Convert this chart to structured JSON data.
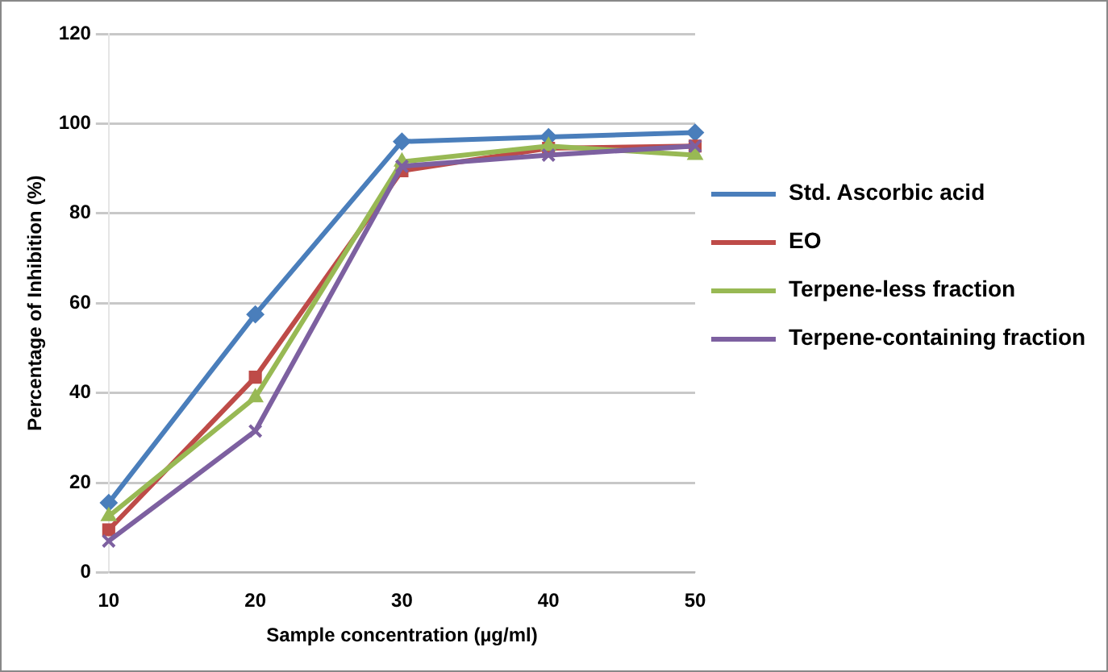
{
  "chart_data": {
    "type": "line",
    "xlabel": "Sample concentration (µg/ml)",
    "ylabel": "Percentage of Inhibition (%)",
    "categories": [
      "10",
      "20",
      "30",
      "40",
      "50"
    ],
    "series": [
      {
        "name": "Std. Ascorbic acid",
        "color": "#4a7ebb",
        "marker": "diamond",
        "values": [
          15.5,
          57.5,
          96,
          97,
          98
        ]
      },
      {
        "name": "EO",
        "color": "#be4b48",
        "marker": "square",
        "values": [
          9.5,
          43.5,
          89.5,
          94.5,
          95
        ]
      },
      {
        "name": "Terpene-less fraction",
        "color": "#98b954",
        "marker": "triangle",
        "values": [
          12.5,
          39,
          91.5,
          95,
          93
        ]
      },
      {
        "name": "Terpene-containing fraction",
        "color": "#7d60a0",
        "marker": "cross",
        "values": [
          7,
          31.5,
          90.5,
          93,
          95
        ]
      }
    ],
    "ylim": [
      0,
      120
    ],
    "yticks": [
      0,
      20,
      40,
      60,
      80,
      100,
      120
    ],
    "grid": "y",
    "legend": "right"
  }
}
